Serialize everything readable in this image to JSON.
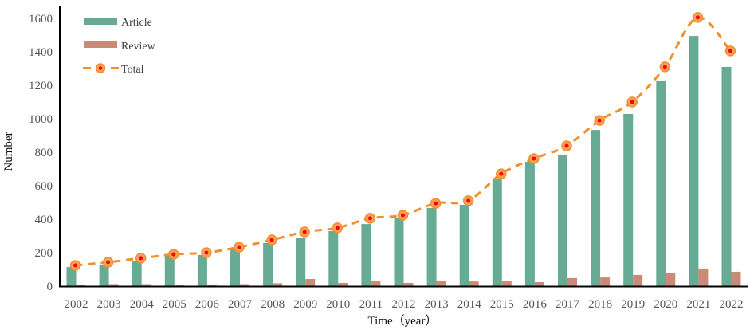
{
  "chart_data": {
    "type": "bar",
    "title": "",
    "xlabel": "Time（year）",
    "ylabel": "Number",
    "ylim": [
      0,
      1600
    ],
    "yticks": [
      0,
      200,
      400,
      600,
      800,
      1000,
      1200,
      1400,
      1600
    ],
    "grid": false,
    "legend_position": "upper left",
    "categories": [
      "2002",
      "2003",
      "2004",
      "2005",
      "2006",
      "2007",
      "2008",
      "2009",
      "2010",
      "2011",
      "2012",
      "2013",
      "2014",
      "2015",
      "2016",
      "2017",
      "2018",
      "2019",
      "2020",
      "2021",
      "2022"
    ],
    "series": [
      {
        "name": "Article",
        "type": "bar",
        "color": "#68AB95",
        "values": [
          114,
          128,
          152,
          181,
          186,
          224,
          257,
          286,
          329,
          371,
          405,
          467,
          486,
          638,
          743,
          786,
          933,
          1029,
          1229,
          1495,
          1310
        ]
      },
      {
        "name": "Review",
        "type": "bar",
        "color": "#C98A77",
        "values": [
          5,
          12,
          12,
          7,
          10,
          12,
          17,
          43,
          19,
          33,
          19,
          33,
          28,
          33,
          24,
          48,
          52,
          67,
          76,
          105,
          86
        ]
      },
      {
        "name": "Total",
        "type": "line",
        "color": "#F28E2B",
        "marker_color": "#FF0000",
        "line_style": "dashed",
        "values": [
          124,
          143,
          167,
          190,
          200,
          233,
          276,
          324,
          348,
          405,
          424,
          495,
          510,
          671,
          762,
          838,
          990,
          1100,
          1310,
          1605,
          1405
        ]
      }
    ]
  },
  "legend": {
    "items": [
      {
        "label": "Article"
      },
      {
        "label": "Review"
      },
      {
        "label": "Total"
      }
    ]
  },
  "axes": {
    "x_title": "Time（year）",
    "y_title": "Number"
  }
}
